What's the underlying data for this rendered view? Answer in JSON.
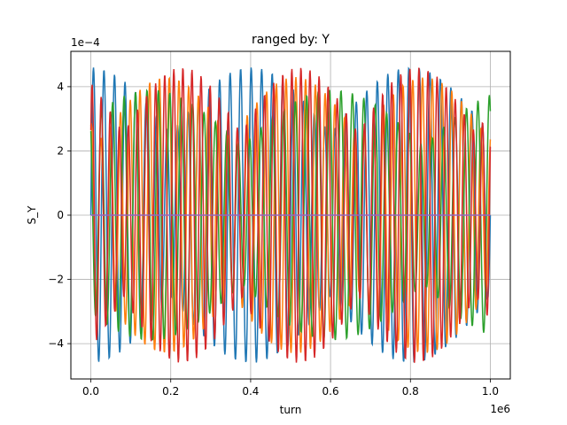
{
  "chart_data": {
    "type": "line",
    "title": "ranged by: Y",
    "xlabel": "turn",
    "ylabel": "S_Y",
    "x_offset_label": "1e6",
    "y_offset_label": "1e−4",
    "xlim": [
      -0.05,
      1.05
    ],
    "ylim": [
      -5.1,
      5.1
    ],
    "x_ticks": [
      0.0,
      0.2,
      0.4,
      0.6,
      0.8,
      1.0
    ],
    "x_tick_labels": [
      "0.0",
      "0.2",
      "0.4",
      "0.6",
      "0.8",
      "1.0"
    ],
    "y_ticks": [
      -4,
      -2,
      0,
      2,
      4
    ],
    "y_tick_labels": [
      "−4",
      "−2",
      "0",
      "2",
      "4"
    ],
    "grid": true,
    "legend": "none",
    "series": [
      {
        "color": "#1f77b4",
        "amplitude": 4.6,
        "cycles": 38,
        "mod_cycles": 2.5,
        "phase": 0.0
      },
      {
        "color": "#ff7f0e",
        "amplitude": 4.3,
        "cycles": 41,
        "mod_cycles": 3.1,
        "phase": 1.3
      },
      {
        "color": "#2ca02c",
        "amplitude": 3.9,
        "cycles": 35,
        "mod_cycles": 2.2,
        "phase": 2.1
      },
      {
        "color": "#d62728",
        "amplitude": 4.6,
        "cycles": 44,
        "mod_cycles": 3.4,
        "phase": 0.7
      },
      {
        "color": "#9467bd",
        "amplitude": 0.0,
        "cycles": 1,
        "mod_cycles": 1,
        "phase": 0.0
      }
    ]
  }
}
